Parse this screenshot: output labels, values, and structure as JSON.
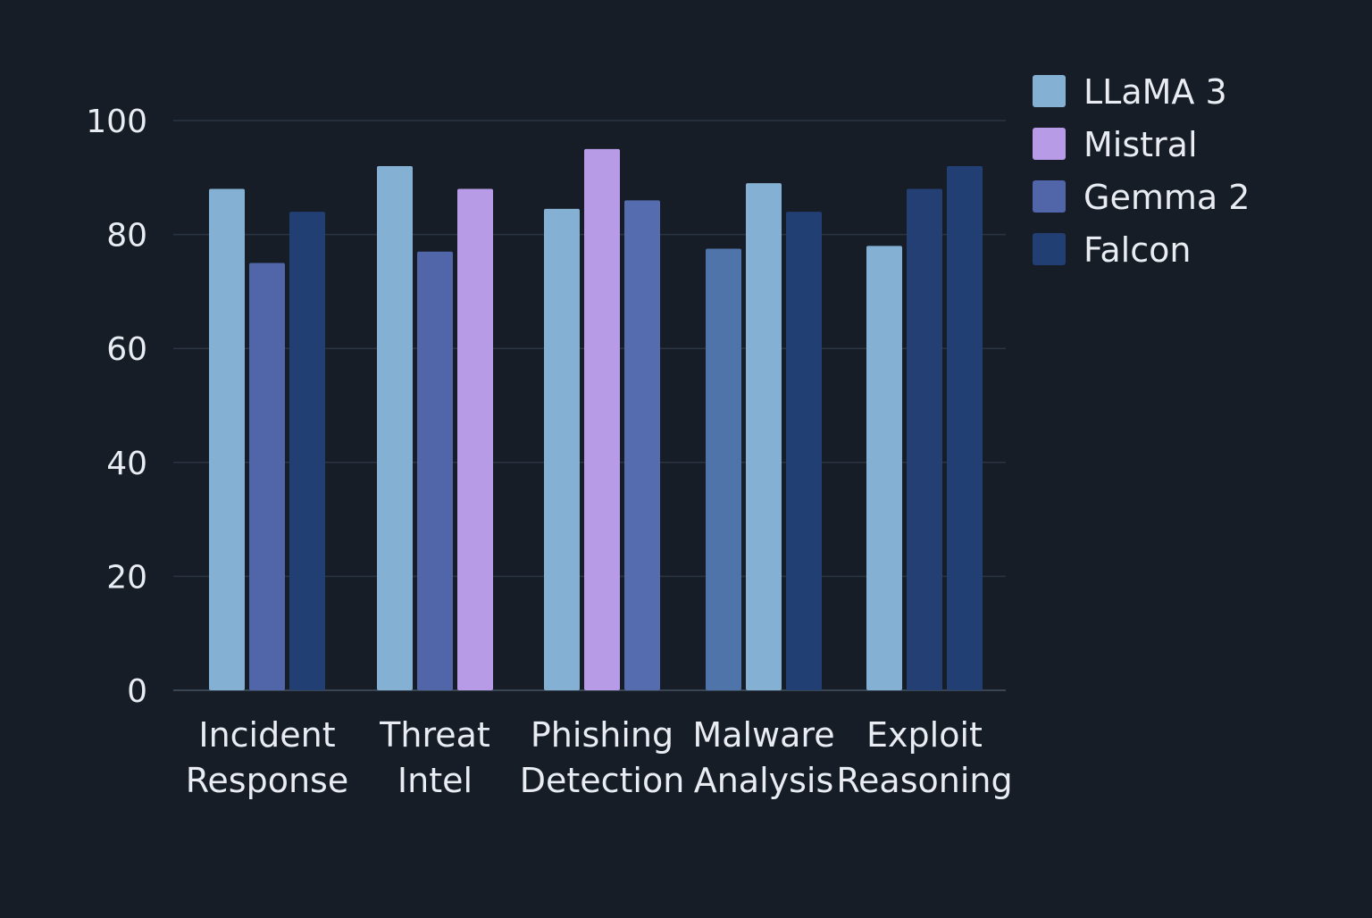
{
  "chart_data": {
    "type": "bar",
    "title": "",
    "xlabel": "",
    "ylabel": "",
    "ylim": [
      0,
      100
    ],
    "yticks": [
      0,
      20,
      40,
      60,
      80,
      100
    ],
    "grid": true,
    "legend_position": "top-right",
    "categories": [
      [
        "Incident",
        "Response"
      ],
      [
        "Threat",
        "Intel"
      ],
      [
        "Phishing",
        "Detection"
      ],
      [
        "Malware",
        "Analysis"
      ],
      [
        "Exploit",
        "Reasoning"
      ]
    ],
    "legend": [
      {
        "name": "LLaMA 3",
        "color": "#83b0d3"
      },
      {
        "name": "Mistral",
        "color": "#b79be6"
      },
      {
        "name": "Gemma 2",
        "color": "#5066a8"
      },
      {
        "name": "Falcon",
        "color": "#213f73"
      }
    ],
    "groups": [
      {
        "bars": [
          {
            "value": 88,
            "color": "#83b0d3"
          },
          {
            "value": 75,
            "color": "#5066a8"
          },
          {
            "value": 84,
            "color": "#213f73"
          }
        ]
      },
      {
        "bars": [
          {
            "value": 92,
            "color": "#83b0d3"
          },
          {
            "value": 77,
            "color": "#5066a8"
          },
          {
            "value": 88,
            "color": "#b79be6"
          }
        ]
      },
      {
        "bars": [
          {
            "value": 84.5,
            "color": "#83b0d3"
          },
          {
            "value": 95,
            "color": "#b79be6"
          },
          {
            "value": 86,
            "color": "#556daf"
          }
        ]
      },
      {
        "bars": [
          {
            "value": 77.5,
            "color": "#4e74aa"
          },
          {
            "value": 89,
            "color": "#83b0d3"
          },
          {
            "value": 84,
            "color": "#213f73"
          }
        ]
      },
      {
        "bars": [
          {
            "value": 78,
            "color": "#83b0d3"
          },
          {
            "value": 88,
            "color": "#243f74"
          },
          {
            "value": 92,
            "color": "#213f73"
          }
        ]
      }
    ],
    "colors": {
      "background": "#161d26",
      "grid": "#2a3442",
      "text": "#e9edf3"
    }
  }
}
